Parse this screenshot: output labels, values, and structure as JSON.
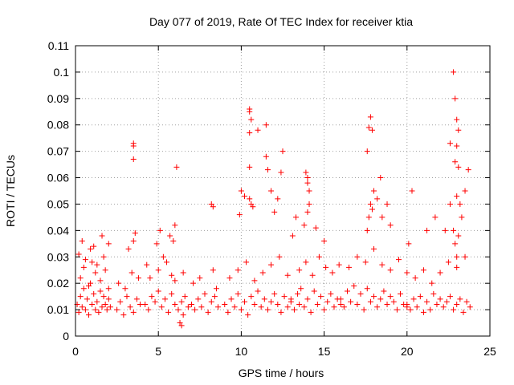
{
  "chart_data": {
    "type": "scatter",
    "title": "Day 077 of 2019, Rate Of TEC Index for receiver ktia",
    "xlabel": "GPS time / hours",
    "ylabel": "ROTI / TECUs",
    "xlim": [
      0,
      25
    ],
    "ylim": [
      0,
      0.11
    ],
    "xticks": [
      0,
      5,
      10,
      15,
      20,
      25
    ],
    "xtick_labels": [
      "0",
      "5",
      "10",
      "15",
      "20",
      "25"
    ],
    "yticks": [
      0,
      0.01,
      0.02,
      0.03,
      0.04,
      0.05,
      0.06,
      0.07,
      0.08,
      0.09,
      0.1,
      0.11
    ],
    "ytick_labels": [
      "0",
      "0.01",
      "0.02",
      "0.03",
      "0.04",
      "0.05",
      "0.06",
      "0.07",
      "0.08",
      "0.09",
      "0.1",
      "0.11"
    ],
    "grid": true,
    "marker": "+",
    "marker_color": "#ff0000",
    "series": [
      {
        "name": "ROTI",
        "x": [
          0.1,
          0.2,
          0.3,
          0.4,
          0.5,
          0.6,
          0.7,
          0.8,
          0.9,
          1.0,
          1.1,
          1.2,
          1.3,
          1.4,
          1.5,
          1.6,
          1.7,
          1.8,
          1.9,
          2.0,
          2.1,
          0.3,
          0.5,
          0.8,
          1.0,
          1.2,
          1.5,
          1.8,
          2.0,
          0.2,
          0.6,
          0.9,
          1.3,
          1.7,
          0.4,
          1.1,
          1.6,
          2.0,
          2.5,
          2.7,
          2.9,
          3.1,
          3.3,
          3.5,
          3.7,
          3.9,
          2.6,
          3.0,
          3.4,
          3.8,
          3.2,
          3.5,
          3.6,
          3.5,
          3.5,
          3.5,
          4.2,
          4.4,
          4.6,
          4.8,
          5.0,
          5.2,
          5.4,
          5.6,
          5.8,
          6.0,
          6.2,
          6.4,
          6.6,
          6.8,
          4.5,
          5.0,
          5.5,
          6.0,
          6.5,
          4.3,
          5.3,
          5.8,
          4.9,
          5.1,
          5.7,
          6.0,
          5.9,
          6.1,
          6.3,
          6.4,
          6.5,
          7.0,
          7.2,
          7.4,
          7.6,
          7.8,
          8.0,
          8.2,
          8.4,
          8.6,
          7.1,
          7.5,
          8.3,
          8.5,
          8.2,
          8.3,
          9.0,
          9.2,
          9.4,
          9.6,
          9.8,
          10.0,
          10.2,
          10.4,
          10.6,
          10.8,
          11.0,
          11.2,
          11.4,
          11.6,
          11.8,
          12.0,
          12.2,
          12.4,
          12.6,
          12.8,
          13.0,
          9.3,
          9.8,
          10.3,
          10.8,
          11.3,
          11.8,
          12.3,
          12.8,
          9.9,
          10.0,
          10.2,
          10.5,
          10.6,
          10.7,
          10.5,
          10.5,
          10.6,
          10.5,
          10.5,
          11.0,
          11.5,
          11.5,
          11.6,
          11.8,
          12.0,
          12.2,
          12.4,
          12.5,
          13.0,
          13.2,
          13.4,
          13.5,
          13.6,
          13.8,
          14.0,
          14.2,
          14.4,
          14.6,
          14.8,
          15.0,
          15.2,
          15.4,
          15.6,
          15.8,
          16.0,
          13.5,
          13.9,
          14.3,
          14.7,
          15.1,
          15.5,
          15.9,
          13.1,
          13.3,
          13.8,
          14.0,
          14.1,
          14.5,
          15.0,
          13.9,
          14.0,
          14.1,
          14.0,
          16.0,
          16.2,
          16.4,
          16.6,
          16.8,
          17.0,
          17.2,
          17.4,
          17.6,
          17.8,
          18.0,
          18.2,
          18.4,
          18.6,
          18.8,
          19.0,
          19.2,
          19.4,
          19.6,
          19.8,
          20.0,
          16.5,
          17.0,
          17.5,
          18.0,
          18.5,
          19.0,
          19.5,
          20.0,
          17.6,
          17.7,
          17.8,
          17.9,
          18.0,
          18.2,
          18.4,
          18.5,
          18.8,
          19.0,
          17.8,
          17.7,
          17.9,
          17.6,
          20.0,
          20.2,
          20.4,
          20.6,
          20.8,
          21.0,
          21.2,
          21.4,
          21.6,
          21.8,
          22.0,
          22.2,
          22.4,
          22.6,
          22.8,
          23.0,
          23.2,
          23.4,
          23.6,
          23.8,
          20.5,
          21.0,
          21.5,
          22.0,
          22.5,
          23.0,
          23.5,
          20.1,
          20.3,
          21.2,
          21.7,
          22.3,
          22.6,
          23.1,
          23.3,
          23.5,
          23.7,
          22.8,
          22.9,
          23.0,
          23.1,
          23.0,
          22.9,
          23.1,
          23.0,
          23.2,
          22.8,
          22.9,
          23.0,
          22.6
        ],
        "y": [
          0.012,
          0.009,
          0.015,
          0.011,
          0.018,
          0.01,
          0.014,
          0.008,
          0.02,
          0.012,
          0.016,
          0.01,
          0.013,
          0.009,
          0.017,
          0.011,
          0.015,
          0.012,
          0.01,
          0.014,
          0.011,
          0.022,
          0.026,
          0.019,
          0.028,
          0.024,
          0.021,
          0.025,
          0.018,
          0.031,
          0.029,
          0.033,
          0.027,
          0.03,
          0.036,
          0.034,
          0.038,
          0.035,
          0.01,
          0.013,
          0.008,
          0.015,
          0.011,
          0.009,
          0.014,
          0.012,
          0.02,
          0.018,
          0.024,
          0.022,
          0.033,
          0.036,
          0.039,
          0.072,
          0.073,
          0.067,
          0.012,
          0.01,
          0.015,
          0.013,
          0.017,
          0.011,
          0.014,
          0.009,
          0.016,
          0.012,
          0.01,
          0.013,
          0.015,
          0.011,
          0.022,
          0.025,
          0.028,
          0.021,
          0.024,
          0.027,
          0.03,
          0.023,
          0.035,
          0.04,
          0.038,
          0.042,
          0.036,
          0.064,
          0.005,
          0.004,
          0.008,
          0.012,
          0.01,
          0.014,
          0.011,
          0.016,
          0.009,
          0.013,
          0.015,
          0.011,
          0.02,
          0.022,
          0.025,
          0.018,
          0.05,
          0.049,
          0.012,
          0.009,
          0.014,
          0.011,
          0.016,
          0.01,
          0.013,
          0.008,
          0.015,
          0.012,
          0.017,
          0.011,
          0.014,
          0.01,
          0.013,
          0.016,
          0.012,
          0.009,
          0.015,
          0.011,
          0.014,
          0.022,
          0.025,
          0.028,
          0.021,
          0.024,
          0.027,
          0.03,
          0.023,
          0.046,
          0.055,
          0.053,
          0.052,
          0.05,
          0.049,
          0.086,
          0.085,
          0.082,
          0.077,
          0.064,
          0.078,
          0.08,
          0.068,
          0.063,
          0.055,
          0.047,
          0.052,
          0.062,
          0.07,
          0.013,
          0.01,
          0.016,
          0.012,
          0.018,
          0.011,
          0.014,
          0.009,
          0.017,
          0.012,
          0.015,
          0.01,
          0.013,
          0.016,
          0.011,
          0.014,
          0.012,
          0.025,
          0.028,
          0.023,
          0.03,
          0.026,
          0.024,
          0.027,
          0.038,
          0.045,
          0.042,
          0.047,
          0.05,
          0.041,
          0.036,
          0.062,
          0.06,
          0.055,
          0.058,
          0.014,
          0.011,
          0.017,
          0.013,
          0.019,
          0.012,
          0.016,
          0.01,
          0.018,
          0.013,
          0.015,
          0.011,
          0.014,
          0.017,
          0.012,
          0.015,
          0.013,
          0.01,
          0.016,
          0.012,
          0.011,
          0.026,
          0.03,
          0.028,
          0.033,
          0.027,
          0.025,
          0.029,
          0.024,
          0.04,
          0.045,
          0.05,
          0.048,
          0.055,
          0.052,
          0.06,
          0.045,
          0.05,
          0.042,
          0.083,
          0.079,
          0.078,
          0.07,
          0.012,
          0.01,
          0.014,
          0.011,
          0.015,
          0.009,
          0.013,
          0.01,
          0.016,
          0.012,
          0.014,
          0.011,
          0.013,
          0.015,
          0.01,
          0.012,
          0.014,
          0.009,
          0.013,
          0.011,
          0.022,
          0.025,
          0.02,
          0.024,
          0.028,
          0.026,
          0.03,
          0.035,
          0.055,
          0.04,
          0.045,
          0.04,
          0.05,
          0.038,
          0.045,
          0.055,
          0.063,
          0.1,
          0.09,
          0.082,
          0.078,
          0.072,
          0.066,
          0.064,
          0.053,
          0.05,
          0.04,
          0.035,
          0.03,
          0.073
        ]
      }
    ]
  }
}
